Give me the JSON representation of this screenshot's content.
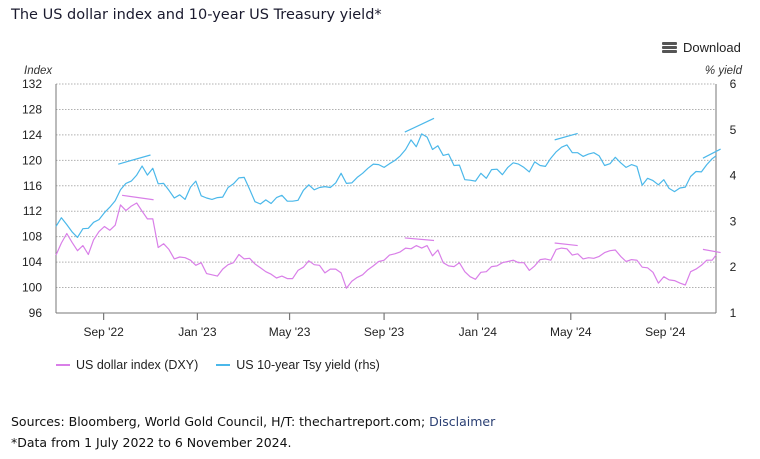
{
  "title": "The US dollar index and 10-year US Treasury yield*",
  "toolbar": {
    "download_label": "Download",
    "menu_icon": "hamburger-menu-icon"
  },
  "footer": {
    "sources_text": "Sources: Bloomberg, World Gold Council, H/T: thechartreport.com; ",
    "disclaimer_link": "Disclaimer",
    "note": "*Data from 1 July 2022 to 6 November 2024."
  },
  "colors": {
    "dxy": "#d97fe8",
    "yield": "#4bb8ea",
    "grid": "#b0b0b0",
    "axis": "#777777"
  },
  "chart_data": {
    "type": "line",
    "title": "The US dollar index and 10-year US Treasury yield*",
    "ylabel": "Index",
    "ylabel_right": "% yield",
    "ylim": [
      96,
      132
    ],
    "ylim_right": [
      1,
      6
    ],
    "yticks": [
      132,
      128,
      124,
      120,
      116,
      112,
      108,
      104,
      100,
      96
    ],
    "yticks_right": [
      6,
      5,
      4,
      3,
      2,
      1
    ],
    "xrange": [
      "2022-07-01",
      "2024-11-06"
    ],
    "xticks": [
      {
        "label": "Sep '22",
        "date": "2022-09-01"
      },
      {
        "label": "Jan '23",
        "date": "2023-01-01"
      },
      {
        "label": "May '23",
        "date": "2023-05-01"
      },
      {
        "label": "Sep '23",
        "date": "2023-09-01"
      },
      {
        "label": "Jan '24",
        "date": "2024-01-01"
      },
      {
        "label": "May '24",
        "date": "2024-05-01"
      },
      {
        "label": "Sep '24",
        "date": "2024-09-01"
      }
    ],
    "grid": true,
    "legend_position": "bottom-left",
    "series": [
      {
        "name": "US dollar index (DXY)",
        "axis": "left",
        "x": [
          "2022-07-01",
          "2022-07-08",
          "2022-07-15",
          "2022-07-22",
          "2022-07-29",
          "2022-08-05",
          "2022-08-12",
          "2022-08-19",
          "2022-08-26",
          "2022-09-02",
          "2022-09-09",
          "2022-09-16",
          "2022-09-23",
          "2022-09-30",
          "2022-10-07",
          "2022-10-14",
          "2022-10-21",
          "2022-10-28",
          "2022-11-04",
          "2022-11-11",
          "2022-11-18",
          "2022-11-25",
          "2022-12-02",
          "2022-12-09",
          "2022-12-16",
          "2022-12-23",
          "2022-12-30",
          "2023-01-06",
          "2023-01-13",
          "2023-01-20",
          "2023-01-27",
          "2023-02-03",
          "2023-02-10",
          "2023-02-17",
          "2023-02-24",
          "2023-03-03",
          "2023-03-10",
          "2023-03-17",
          "2023-03-24",
          "2023-03-31",
          "2023-04-07",
          "2023-04-14",
          "2023-04-21",
          "2023-04-28",
          "2023-05-05",
          "2023-05-12",
          "2023-05-19",
          "2023-05-26",
          "2023-06-02",
          "2023-06-09",
          "2023-06-16",
          "2023-06-23",
          "2023-06-30",
          "2023-07-07",
          "2023-07-14",
          "2023-07-21",
          "2023-07-28",
          "2023-08-04",
          "2023-08-11",
          "2023-08-18",
          "2023-08-25",
          "2023-09-01",
          "2023-09-08",
          "2023-09-15",
          "2023-09-22",
          "2023-09-29",
          "2023-10-06",
          "2023-10-13",
          "2023-10-20",
          "2023-10-27",
          "2023-11-03",
          "2023-11-10",
          "2023-11-17",
          "2023-11-24",
          "2023-12-01",
          "2023-12-08",
          "2023-12-15",
          "2023-12-22",
          "2023-12-29",
          "2024-01-05",
          "2024-01-12",
          "2024-01-19",
          "2024-01-26",
          "2024-02-02",
          "2024-02-09",
          "2024-02-16",
          "2024-02-23",
          "2024-03-01",
          "2024-03-08",
          "2024-03-15",
          "2024-03-22",
          "2024-03-29",
          "2024-04-05",
          "2024-04-12",
          "2024-04-19",
          "2024-04-26",
          "2024-05-03",
          "2024-05-10",
          "2024-05-17",
          "2024-05-24",
          "2024-05-31",
          "2024-06-07",
          "2024-06-14",
          "2024-06-21",
          "2024-06-28",
          "2024-07-05",
          "2024-07-12",
          "2024-07-19",
          "2024-07-26",
          "2024-08-02",
          "2024-08-09",
          "2024-08-16",
          "2024-08-23",
          "2024-08-30",
          "2024-09-06",
          "2024-09-13",
          "2024-09-20",
          "2024-09-27",
          "2024-10-04",
          "2024-10-11",
          "2024-10-18",
          "2024-10-25",
          "2024-11-01",
          "2024-11-06"
        ],
        "values": [
          105.1,
          107.0,
          108.5,
          107.1,
          105.8,
          106.6,
          105.2,
          107.5,
          108.8,
          109.6,
          109.0,
          109.8,
          113.0,
          112.1,
          112.8,
          113.3,
          112.0,
          110.8,
          110.8,
          106.3,
          106.9,
          106.0,
          104.5,
          104.8,
          104.7,
          104.3,
          103.5,
          103.9,
          102.2,
          102.0,
          101.8,
          102.9,
          103.6,
          103.9,
          105.2,
          104.5,
          104.6,
          103.7,
          103.1,
          102.5,
          102.1,
          101.5,
          101.8,
          101.4,
          101.4,
          102.7,
          103.2,
          104.2,
          103.6,
          103.5,
          102.3,
          102.9,
          102.9,
          102.3,
          99.9,
          101.0,
          101.6,
          102.0,
          102.8,
          103.4,
          104.1,
          104.3,
          105.1,
          105.3,
          105.6,
          106.2,
          106.1,
          106.6,
          106.2,
          106.6,
          105.0,
          105.9,
          103.9,
          103.4,
          103.3,
          103.9,
          102.5,
          101.7,
          101.3,
          102.4,
          102.5,
          103.3,
          103.4,
          103.9,
          104.1,
          104.3,
          103.9,
          103.9,
          102.7,
          103.4,
          104.4,
          104.5,
          104.3,
          106.0,
          106.2,
          106.1,
          105.1,
          105.3,
          104.5,
          104.7,
          104.6,
          104.9,
          105.5,
          105.8,
          105.9,
          104.9,
          104.1,
          104.4,
          104.3,
          103.2,
          103.1,
          102.4,
          100.7,
          101.7,
          101.2,
          101.1,
          100.7,
          100.4,
          102.5,
          102.9,
          103.5,
          104.3,
          104.3,
          105.1
        ]
      },
      {
        "name": "US 10-year Tsy yield (rhs)",
        "axis": "right",
        "x": [
          "2022-07-01",
          "2022-07-08",
          "2022-07-15",
          "2022-07-22",
          "2022-07-29",
          "2022-08-05",
          "2022-08-12",
          "2022-08-19",
          "2022-08-26",
          "2022-09-02",
          "2022-09-09",
          "2022-09-16",
          "2022-09-23",
          "2022-09-30",
          "2022-10-07",
          "2022-10-14",
          "2022-10-21",
          "2022-10-28",
          "2022-11-04",
          "2022-11-11",
          "2022-11-18",
          "2022-11-25",
          "2022-12-02",
          "2022-12-09",
          "2022-12-16",
          "2022-12-23",
          "2022-12-30",
          "2023-01-06",
          "2023-01-13",
          "2023-01-20",
          "2023-01-27",
          "2023-02-03",
          "2023-02-10",
          "2023-02-17",
          "2023-02-24",
          "2023-03-03",
          "2023-03-10",
          "2023-03-17",
          "2023-03-24",
          "2023-03-31",
          "2023-04-07",
          "2023-04-14",
          "2023-04-21",
          "2023-04-28",
          "2023-05-05",
          "2023-05-12",
          "2023-05-19",
          "2023-05-26",
          "2023-06-02",
          "2023-06-09",
          "2023-06-16",
          "2023-06-23",
          "2023-06-30",
          "2023-07-07",
          "2023-07-14",
          "2023-07-21",
          "2023-07-28",
          "2023-08-04",
          "2023-08-11",
          "2023-08-18",
          "2023-08-25",
          "2023-09-01",
          "2023-09-08",
          "2023-09-15",
          "2023-09-22",
          "2023-09-29",
          "2023-10-06",
          "2023-10-13",
          "2023-10-20",
          "2023-10-27",
          "2023-11-03",
          "2023-11-10",
          "2023-11-17",
          "2023-11-24",
          "2023-12-01",
          "2023-12-08",
          "2023-12-15",
          "2023-12-22",
          "2023-12-29",
          "2024-01-05",
          "2024-01-12",
          "2024-01-19",
          "2024-01-26",
          "2024-02-02",
          "2024-02-09",
          "2024-02-16",
          "2024-02-23",
          "2024-03-01",
          "2024-03-08",
          "2024-03-15",
          "2024-03-22",
          "2024-03-29",
          "2024-04-05",
          "2024-04-12",
          "2024-04-19",
          "2024-04-26",
          "2024-05-03",
          "2024-05-10",
          "2024-05-17",
          "2024-05-24",
          "2024-05-31",
          "2024-06-07",
          "2024-06-14",
          "2024-06-21",
          "2024-06-28",
          "2024-07-05",
          "2024-07-12",
          "2024-07-19",
          "2024-07-26",
          "2024-08-02",
          "2024-08-09",
          "2024-08-16",
          "2024-08-23",
          "2024-08-30",
          "2024-09-06",
          "2024-09-13",
          "2024-09-20",
          "2024-09-27",
          "2024-10-04",
          "2024-10-11",
          "2024-10-18",
          "2024-10-25",
          "2024-11-01",
          "2024-11-06"
        ],
        "values": [
          2.89,
          3.08,
          2.93,
          2.77,
          2.65,
          2.84,
          2.85,
          2.98,
          3.04,
          3.19,
          3.31,
          3.45,
          3.69,
          3.83,
          3.88,
          4.01,
          4.21,
          4.01,
          4.16,
          3.82,
          3.83,
          3.68,
          3.51,
          3.58,
          3.48,
          3.75,
          3.88,
          3.56,
          3.51,
          3.48,
          3.52,
          3.53,
          3.74,
          3.82,
          3.95,
          3.96,
          3.7,
          3.43,
          3.38,
          3.47,
          3.39,
          3.52,
          3.57,
          3.44,
          3.44,
          3.46,
          3.68,
          3.8,
          3.69,
          3.74,
          3.76,
          3.74,
          3.84,
          4.05,
          3.83,
          3.84,
          3.96,
          4.05,
          4.16,
          4.25,
          4.24,
          4.18,
          4.26,
          4.33,
          4.43,
          4.57,
          4.78,
          4.63,
          4.91,
          4.84,
          4.57,
          4.65,
          4.44,
          4.47,
          4.22,
          4.23,
          3.91,
          3.9,
          3.88,
          4.05,
          3.94,
          4.13,
          4.14,
          4.02,
          4.18,
          4.28,
          4.25,
          4.18,
          4.08,
          4.3,
          4.22,
          4.2,
          4.38,
          4.52,
          4.62,
          4.67,
          4.5,
          4.5,
          4.42,
          4.47,
          4.5,
          4.43,
          4.22,
          4.26,
          4.4,
          4.28,
          4.18,
          4.24,
          4.2,
          3.79,
          3.94,
          3.89,
          3.8,
          3.91,
          3.72,
          3.65,
          3.73,
          3.75,
          3.98,
          4.09,
          4.08,
          4.24,
          4.37,
          4.43
        ]
      }
    ],
    "annotations": [
      {
        "series": "US 10-year Tsy yield (rhs)",
        "type": "trendline",
        "from": [
          "2022-09-20",
          4.25
        ],
        "to": [
          "2022-11-01",
          4.45
        ]
      },
      {
        "series": "US dollar index (DXY)",
        "type": "trendline",
        "from": [
          "2022-09-25",
          114.5
        ],
        "to": [
          "2022-11-05",
          113.8
        ]
      },
      {
        "series": "US 10-year Tsy yield (rhs)",
        "type": "trendline",
        "from": [
          "2023-09-28",
          4.95
        ],
        "to": [
          "2023-11-05",
          5.25
        ]
      },
      {
        "series": "US dollar index (DXY)",
        "type": "trendline",
        "from": [
          "2023-09-28",
          107.8
        ],
        "to": [
          "2023-11-05",
          107.4
        ]
      },
      {
        "series": "US 10-year Tsy yield (rhs)",
        "type": "trendline",
        "from": [
          "2024-04-10",
          4.78
        ],
        "to": [
          "2024-05-10",
          4.92
        ]
      },
      {
        "series": "US dollar index (DXY)",
        "type": "trendline",
        "from": [
          "2024-04-10",
          107.0
        ],
        "to": [
          "2024-05-10",
          106.6
        ]
      },
      {
        "series": "US 10-year Tsy yield (rhs)",
        "type": "trendline",
        "from": [
          "2024-10-20",
          4.38
        ],
        "to": [
          "2024-11-12",
          4.58
        ]
      },
      {
        "series": "US dollar index (DXY)",
        "type": "trendline",
        "from": [
          "2024-10-20",
          106.0
        ],
        "to": [
          "2024-11-12",
          105.5
        ]
      }
    ]
  }
}
